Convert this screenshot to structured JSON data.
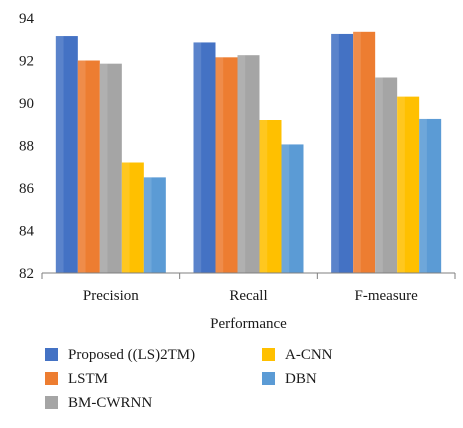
{
  "chart_data": {
    "type": "bar",
    "categories": [
      "Precision",
      "Recall",
      "F-measure"
    ],
    "series": [
      {
        "name": "Proposed ((LS)2TM)",
        "values": [
          93.15,
          92.85,
          93.25
        ],
        "color": "#4472c4"
      },
      {
        "name": "LSTM",
        "values": [
          92.0,
          92.15,
          93.35
        ],
        "color": "#ed7d31"
      },
      {
        "name": "BM-CWRNN",
        "values": [
          91.85,
          92.25,
          91.2
        ],
        "color": "#a5a5a5"
      },
      {
        "name": "A-CNN",
        "values": [
          87.2,
          89.2,
          90.3
        ],
        "color": "#ffc000"
      },
      {
        "name": "DBN",
        "values": [
          86.5,
          88.05,
          89.25
        ],
        "color": "#5b9bd5"
      }
    ],
    "xlabel": "Performance",
    "ylabel": "",
    "ylim": [
      82,
      94
    ],
    "yticks": [
      "82",
      "84",
      "86",
      "88",
      "90",
      "92",
      "94"
    ],
    "grid": false,
    "legend_position": "bottom"
  }
}
